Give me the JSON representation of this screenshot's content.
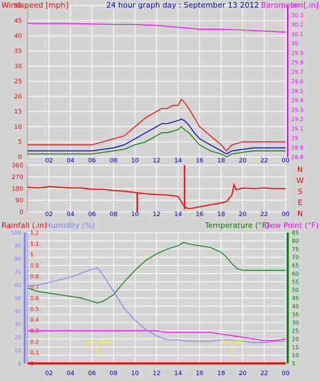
{
  "header": {
    "windspeed_label": "Windspeed [mph]",
    "title": "24 hour graph day : September 13 2012",
    "barometer_label": "Barometer [.in]"
  },
  "colors": {
    "background": "#d4d4d4",
    "grid": "#ffffff",
    "red": "#ff0000",
    "blue": "#0000cc",
    "green": "#008000",
    "magenta": "#ff00ff",
    "humidity": "#8080ff",
    "yellow": "#ffff00"
  },
  "x_axis": {
    "ticks": [
      "02",
      "04",
      "06",
      "08",
      "10",
      "12",
      "14",
      "16",
      "18",
      "20",
      "22",
      "00"
    ]
  },
  "chart_data": [
    {
      "type": "line",
      "name": "wind-barometer",
      "title": "24 hour graph day : September 13 2012",
      "x_range": [
        0,
        24
      ],
      "y_left": {
        "label": "Windspeed [mph]",
        "ticks": [
          "0",
          "5",
          "10",
          "15",
          "20",
          "25",
          "30",
          "35",
          "40",
          "45",
          "50"
        ],
        "range": [
          0,
          50
        ]
      },
      "y_right": {
        "label": "Barometer [.in]",
        "ticks": [
          "28.8",
          "28.9",
          "29",
          "29.1",
          "29.2",
          "29.3",
          "29.4",
          "29.5",
          "29.6",
          "29.7",
          "29.8",
          "29.9",
          "30",
          "30.1",
          "30.2",
          "30.3",
          "30.4"
        ],
        "range": [
          28.8,
          30.4
        ]
      },
      "series": [
        {
          "color": "#ff0000",
          "x": [
            0,
            2,
            4,
            6,
            7,
            8,
            9,
            10,
            11,
            12,
            12.5,
            13,
            13.5,
            14,
            14.3,
            14.6,
            15,
            15.5,
            16,
            17,
            18,
            18.5,
            19,
            20,
            21,
            22,
            23,
            24
          ],
          "y": [
            4,
            4,
            4,
            4,
            5,
            6,
            7,
            10,
            13,
            15,
            16,
            16,
            17,
            17,
            19,
            18,
            16,
            13,
            10,
            7,
            4,
            2,
            4,
            5,
            5,
            5,
            5,
            5
          ]
        },
        {
          "color": "#0000cc",
          "x": [
            0,
            2,
            4,
            6,
            7,
            8,
            9,
            10,
            11,
            12,
            12.5,
            13,
            13.5,
            14,
            14.3,
            14.6,
            15,
            15.5,
            16,
            17,
            18,
            18.5,
            19,
            20,
            21,
            22,
            23,
            24
          ],
          "y": [
            2,
            2,
            2,
            2,
            2.5,
            3,
            4,
            6,
            8,
            10,
            11,
            11,
            11.5,
            12,
            12.5,
            12,
            10.5,
            8,
            6,
            4,
            2,
            1,
            2,
            2.5,
            3,
            3,
            3,
            3
          ]
        },
        {
          "color": "#008000",
          "x": [
            0,
            2,
            4,
            6,
            7,
            8,
            9,
            10,
            11,
            12,
            12.5,
            13,
            13.5,
            14,
            14.3,
            14.6,
            15,
            15.5,
            16,
            17,
            18,
            18.5,
            19,
            20,
            21,
            22,
            23,
            24
          ],
          "y": [
            1,
            1,
            1,
            1,
            1.5,
            2,
            2.5,
            4,
            5,
            7,
            8,
            8,
            8.5,
            9,
            10,
            9,
            8,
            6,
            4,
            2,
            1,
            0,
            1,
            1.5,
            2,
            2,
            2,
            2
          ]
        },
        {
          "color": "#ff00ff",
          "x": [
            0,
            4,
            8,
            10,
            12,
            14,
            16,
            18,
            20,
            22,
            24
          ],
          "y": [
            30.21,
            30.21,
            30.2,
            30.2,
            30.19,
            30.17,
            30.15,
            30.15,
            30.14,
            30.13,
            30.12
          ]
        }
      ]
    },
    {
      "type": "line",
      "name": "wind-direction",
      "x_range": [
        0,
        24
      ],
      "y_left": {
        "ticks": [
          "0",
          "90",
          "180",
          "270",
          "360"
        ],
        "range": [
          0,
          360
        ]
      },
      "y_right": {
        "ticks": [
          "N",
          "W",
          "S",
          "E",
          "N"
        ]
      },
      "series": [
        {
          "color": "#ff0000",
          "x": [
            0,
            1,
            2,
            3,
            4,
            5,
            6,
            7,
            8,
            9,
            10,
            11,
            12,
            13,
            14,
            14.6,
            15,
            16,
            17,
            18,
            18.5,
            19,
            19.2,
            19.4,
            20,
            21,
            22,
            23,
            24
          ],
          "y": [
            190,
            185,
            195,
            190,
            185,
            185,
            175,
            175,
            165,
            160,
            150,
            140,
            135,
            130,
            120,
            40,
            25,
            40,
            55,
            70,
            80,
            130,
            210,
            170,
            185,
            180,
            185,
            180,
            180
          ]
        }
      ]
    },
    {
      "type": "line",
      "name": "rain-humidity-temperature",
      "x_range": [
        0,
        24
      ],
      "y_left_rain": {
        "label": "Rainfall (.in)",
        "ticks": [
          "0",
          "0.1",
          "0.2",
          "0.3",
          "0.4",
          "0.5",
          "0.6",
          "0.7",
          "0.8",
          "0.9",
          "1",
          "1.1",
          "1.2"
        ],
        "range": [
          0,
          1.2
        ]
      },
      "y_left_humidity": {
        "label": "Humidity (%)",
        "ticks": [
          "0",
          "10",
          "20",
          "30",
          "40",
          "50",
          "60",
          "70",
          "80",
          "90",
          "100"
        ],
        "range": [
          0,
          100
        ]
      },
      "y_right": {
        "label_temperature": "Temperature (°F)",
        "label_dewpoint": "Dew Point (°F)",
        "ticks": [
          "5",
          "10",
          "15",
          "20",
          "25",
          "30",
          "35",
          "40",
          "45",
          "50",
          "55",
          "60",
          "65",
          "70",
          "75",
          "80",
          "85"
        ],
        "range": [
          5,
          85
        ]
      },
      "annotations": [
        {
          "text": "Sun Rise",
          "x": 6.5
        },
        {
          "text": "Sun Set",
          "x": 19.0
        }
      ],
      "series": [
        {
          "color": "#008000",
          "axis": "temperature",
          "x": [
            0,
            1,
            2,
            3,
            4,
            5,
            6,
            6.5,
            7,
            8,
            9,
            10,
            11,
            12,
            13,
            14,
            14.5,
            15,
            16,
            17,
            18,
            18.5,
            19,
            19.5,
            20,
            21,
            22,
            23,
            24
          ],
          "y": [
            51,
            49,
            48,
            47,
            46,
            45,
            43,
            42,
            43,
            47,
            55,
            62,
            68,
            72,
            75,
            77,
            79,
            78,
            77,
            76,
            73,
            70,
            66,
            63,
            62,
            62,
            62,
            62,
            62
          ]
        },
        {
          "color": "#ff00ff",
          "axis": "temperature",
          "x": [
            0,
            2,
            4,
            6,
            8,
            10,
            11,
            12,
            13,
            14,
            15,
            16,
            17,
            18,
            19,
            20,
            21,
            22,
            23,
            24
          ],
          "y": [
            25,
            25,
            25,
            25,
            25,
            25,
            25,
            25,
            24,
            24,
            24,
            24,
            24,
            23,
            22,
            21,
            20,
            19,
            19,
            20
          ]
        },
        {
          "color": "#8080ff",
          "axis": "humidity",
          "x": [
            0,
            1,
            2,
            3,
            4,
            5,
            6,
            6.5,
            7,
            8,
            9,
            10,
            11,
            12,
            13,
            14,
            15,
            16,
            17,
            18,
            19,
            20,
            21,
            22,
            23,
            24
          ],
          "y": [
            59,
            60,
            62,
            64,
            66,
            69,
            72,
            73,
            68,
            55,
            42,
            33,
            26,
            21,
            18,
            18,
            17,
            17,
            17,
            18,
            18,
            17,
            16,
            16,
            17,
            17
          ]
        },
        {
          "color": "#ff0000",
          "axis": "rain",
          "x": [
            0,
            24
          ],
          "y": [
            0,
            0
          ]
        }
      ]
    }
  ]
}
